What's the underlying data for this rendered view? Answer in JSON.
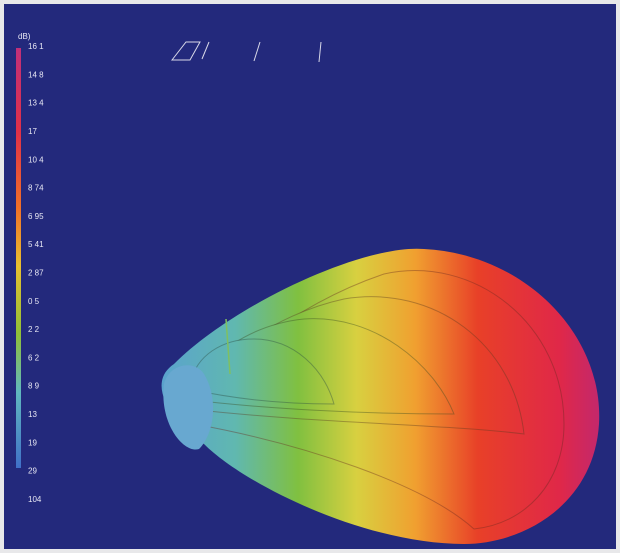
{
  "colorbar": {
    "title": "dB)",
    "labels": [
      "16 1",
      "14 8",
      "13 4",
      "17",
      "10 4",
      "8 74",
      "6 95",
      "5 41",
      "2 87",
      "0 5",
      "2 2",
      "6 2",
      "8 9",
      "13",
      "19",
      "29",
      "104"
    ]
  }
}
